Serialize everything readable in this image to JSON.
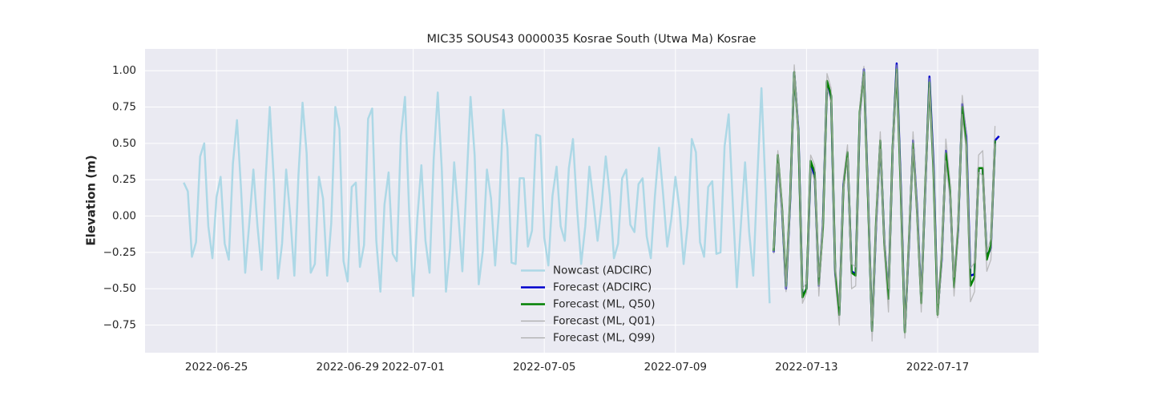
{
  "chart_data": {
    "type": "line",
    "title": "MIC35 SOUS43 0000035 Kosrae South (Utwa Ma) Kosrae",
    "y_label": "Elevation (m)",
    "xlim": [
      19165.82,
      19193.08
    ],
    "xticks": [
      {
        "value": 19168,
        "label": "2022-06-25"
      },
      {
        "value": 19172,
        "label": "2022-06-29"
      },
      {
        "value": 19174,
        "label": "2022-07-01"
      },
      {
        "value": 19178,
        "label": "2022-07-05"
      },
      {
        "value": 19182,
        "label": "2022-07-09"
      },
      {
        "value": 19186,
        "label": "2022-07-13"
      },
      {
        "value": 19190,
        "label": "2022-07-17"
      }
    ],
    "ylim": [
      -0.94,
      1.15
    ],
    "yticks": [
      {
        "value": -0.75,
        "label": "−0.75"
      },
      {
        "value": -0.5,
        "label": "−0.50"
      },
      {
        "value": -0.25,
        "label": "−0.25"
      },
      {
        "value": 0,
        "label": "0.00"
      },
      0.25,
      {
        "value": 0.5,
        "label": "0.50"
      },
      0.75,
      {
        "value": 1,
        "label": "1.00"
      }
    ],
    "grid": true,
    "legend": "lower center",
    "series": [
      {
        "name": "Nowcast (ADCIRC)",
        "color": "#add8e6",
        "width": 2.5,
        "x": [
          19167,
          19167.125,
          19167.25,
          19167.375,
          19167.5,
          19167.625,
          19167.75,
          19167.875,
          19168,
          19168.125,
          19168.25,
          19168.375,
          19168.5,
          19168.625,
          19168.75,
          19168.875,
          19169,
          19169.125,
          19169.25,
          19169.375,
          19169.5,
          19169.625,
          19169.75,
          19169.875,
          19170,
          19170.125,
          19170.25,
          19170.375,
          19170.5,
          19170.625,
          19170.75,
          19170.875,
          19171,
          19171.125,
          19171.25,
          19171.375,
          19171.5,
          19171.625,
          19171.75,
          19171.875,
          19172,
          19172.125,
          19172.25,
          19172.375,
          19172.5,
          19172.625,
          19172.75,
          19172.875,
          19173,
          19173.125,
          19173.25,
          19173.375,
          19173.5,
          19173.625,
          19173.75,
          19173.875,
          19174,
          19174.125,
          19174.25,
          19174.375,
          19174.5,
          19174.625,
          19174.75,
          19174.875,
          19175,
          19175.125,
          19175.25,
          19175.375,
          19175.5,
          19175.625,
          19175.75,
          19175.875,
          19176,
          19176.125,
          19176.25,
          19176.375,
          19176.5,
          19176.625,
          19176.75,
          19176.875,
          19177,
          19177.125,
          19177.25,
          19177.375,
          19177.5,
          19177.625,
          19177.75,
          19177.875,
          19178,
          19178.125,
          19178.25,
          19178.375,
          19178.5,
          19178.625,
          19178.75,
          19178.875,
          19179,
          19179.125,
          19179.25,
          19179.375,
          19179.5,
          19179.625,
          19179.75,
          19179.875,
          19180,
          19180.125,
          19180.25,
          19180.375,
          19180.5,
          19180.625,
          19180.75,
          19180.875,
          19181,
          19181.125,
          19181.25,
          19181.375,
          19181.5,
          19181.625,
          19181.75,
          19181.875,
          19182,
          19182.125,
          19182.25,
          19182.375,
          19182.5,
          19182.625,
          19182.75,
          19182.875,
          19183,
          19183.125,
          19183.25,
          19183.375,
          19183.5,
          19183.625,
          19183.75,
          19183.875,
          19184,
          19184.125,
          19184.25,
          19184.375,
          19184.5,
          19184.625,
          19184.75,
          19184.875
        ],
        "values": [
          0.23,
          0.17,
          -0.28,
          -0.18,
          0.41,
          0.5,
          -0.07,
          -0.29,
          0.13,
          0.27,
          -0.19,
          -0.3,
          0.36,
          0.66,
          0.18,
          -0.39,
          -0.05,
          0.32,
          -0.07,
          -0.37,
          0.26,
          0.75,
          0.24,
          -0.43,
          -0.19,
          0.32,
          0.0,
          -0.41,
          0.28,
          0.78,
          0.43,
          -0.39,
          -0.33,
          0.27,
          0.12,
          -0.41,
          -0.05,
          0.75,
          0.6,
          -0.31,
          -0.45,
          0.2,
          0.23,
          -0.35,
          -0.2,
          0.67,
          0.74,
          -0.17,
          -0.52,
          0.08,
          0.3,
          -0.26,
          -0.31,
          0.55,
          0.82,
          0.04,
          -0.55,
          -0.02,
          0.35,
          -0.17,
          -0.39,
          0.39,
          0.85,
          0.31,
          -0.52,
          -0.22,
          0.37,
          0.02,
          -0.38,
          0.21,
          0.82,
          0.42,
          -0.47,
          -0.24,
          0.32,
          0.12,
          -0.34,
          0.06,
          0.73,
          0.47,
          -0.32,
          -0.33,
          0.26,
          0.26,
          -0.21,
          -0.1,
          0.56,
          0.55,
          -0.15,
          -0.34,
          0.14,
          0.34,
          -0.07,
          -0.17,
          0.33,
          0.53,
          0.05,
          -0.33,
          -0.07,
          0.34,
          0.1,
          -0.17,
          0.08,
          0.41,
          0.14,
          -0.29,
          -0.19,
          0.26,
          0.32,
          -0.06,
          -0.11,
          0.22,
          0.26,
          -0.14,
          -0.29,
          0.14,
          0.47,
          0.15,
          -0.21,
          -0.02,
          0.27,
          0.05,
          -0.33,
          -0.06,
          0.53,
          0.44,
          -0.18,
          -0.28,
          0.2,
          0.24,
          -0.26,
          -0.25,
          0.48,
          0.7,
          0.09,
          -0.49,
          -0.05,
          0.37,
          -0.11,
          -0.41,
          0.27,
          0.88,
          0.18,
          -0.6
        ]
      },
      {
        "name": "Forecast (ADCIRC)",
        "color": "#0000cc",
        "width": 2.5,
        "x": [
          19185,
          19185.125,
          19185.25,
          19185.375,
          19185.5,
          19185.625,
          19185.75,
          19185.875,
          19186,
          19186.125,
          19186.25,
          19186.375,
          19186.5,
          19186.625,
          19186.75,
          19186.875,
          19187,
          19187.125,
          19187.25,
          19187.375,
          19187.5,
          19187.625,
          19187.75,
          19187.875,
          19188,
          19188.125,
          19188.25,
          19188.375,
          19188.5,
          19188.625,
          19188.75,
          19188.875,
          19189,
          19189.125,
          19189.25,
          19189.375,
          19189.5,
          19189.625,
          19189.75,
          19189.875,
          19190,
          19190.125,
          19190.25,
          19190.375,
          19190.5,
          19190.625,
          19190.75,
          19190.875,
          19191,
          19191.125,
          19191.25,
          19191.375,
          19191.5,
          19191.625,
          19191.75,
          19191.875
        ],
        "values": [
          -0.25,
          0.4,
          0.05,
          -0.5,
          0.1,
          0.99,
          0.6,
          -0.55,
          -0.5,
          0.35,
          0.28,
          -0.48,
          -0.05,
          0.92,
          0.82,
          -0.4,
          -0.68,
          0.22,
          0.43,
          -0.38,
          -0.4,
          0.7,
          1.01,
          0.15,
          -0.79,
          -0.05,
          0.51,
          -0.18,
          -0.55,
          0.45,
          1.05,
          0.22,
          -0.79,
          -0.2,
          0.52,
          0.05,
          -0.58,
          0.2,
          0.96,
          0.35,
          -0.66,
          -0.3,
          0.45,
          0.18,
          -0.48,
          -0.1,
          0.77,
          0.55,
          -0.41,
          -0.4,
          0.33,
          0.33,
          -0.28,
          -0.22,
          0.52,
          0.55
        ]
      },
      {
        "name": "Forecast (ML, Q50)",
        "color": "#008000",
        "width": 2.5,
        "x": [
          19185,
          19185.125,
          19185.25,
          19185.375,
          19185.5,
          19185.625,
          19185.75,
          19185.875,
          19186,
          19186.125,
          19186.25,
          19186.375,
          19186.5,
          19186.625,
          19186.75,
          19186.875,
          19187,
          19187.125,
          19187.25,
          19187.375,
          19187.5,
          19187.625,
          19187.75,
          19187.875,
          19188,
          19188.125,
          19188.25,
          19188.375,
          19188.5,
          19188.625,
          19188.75,
          19188.875,
          19189,
          19189.125,
          19189.25,
          19189.375,
          19189.5,
          19189.625,
          19189.75,
          19189.875,
          19190,
          19190.125,
          19190.25,
          19190.375,
          19190.5,
          19190.625,
          19190.75,
          19190.875,
          19191,
          19191.125,
          19191.25,
          19191.375,
          19191.5,
          19191.625,
          19191.75
        ],
        "values": [
          -0.24,
          0.42,
          0.07,
          -0.48,
          0.12,
          0.99,
          0.58,
          -0.56,
          -0.5,
          0.38,
          0.3,
          -0.47,
          -0.08,
          0.93,
          0.83,
          -0.38,
          -0.68,
          0.2,
          0.44,
          -0.39,
          -0.41,
          0.72,
          0.99,
          0.13,
          -0.79,
          -0.02,
          0.52,
          -0.2,
          -0.57,
          0.46,
          1.01,
          0.18,
          -0.8,
          -0.17,
          0.5,
          0.02,
          -0.6,
          0.22,
          0.92,
          0.3,
          -0.68,
          -0.27,
          0.43,
          0.2,
          -0.49,
          -0.08,
          0.75,
          0.5,
          -0.48,
          -0.42,
          0.33,
          0.33,
          -0.3,
          -0.2,
          0.52
        ]
      },
      {
        "name": "Forecast (ML, Q01)",
        "color": "#aaaaaa",
        "width": 1.3,
        "x": [
          19185,
          19185.125,
          19185.25,
          19185.375,
          19185.5,
          19185.625,
          19185.75,
          19185.875,
          19186,
          19186.125,
          19186.25,
          19186.375,
          19186.5,
          19186.625,
          19186.75,
          19186.875,
          19187,
          19187.125,
          19187.25,
          19187.375,
          19187.5,
          19187.625,
          19187.75,
          19187.875,
          19188,
          19188.125,
          19188.25,
          19188.375,
          19188.5,
          19188.625,
          19188.75,
          19188.875,
          19189,
          19189.125,
          19189.25,
          19189.375,
          19189.5,
          19189.625,
          19189.75,
          19189.875,
          19190,
          19190.125,
          19190.25,
          19190.375,
          19190.5,
          19190.625,
          19190.75,
          19190.875,
          19191,
          19191.125,
          19191.25,
          19191.375,
          19191.5,
          19191.625,
          19191.75
        ],
        "values": [
          -0.26,
          0.36,
          0.02,
          -0.52,
          0.06,
          0.95,
          0.55,
          -0.6,
          -0.53,
          0.33,
          0.24,
          -0.55,
          -0.1,
          0.88,
          0.78,
          -0.45,
          -0.75,
          0.18,
          0.4,
          -0.5,
          -0.48,
          0.66,
          0.96,
          0.1,
          -0.86,
          -0.1,
          0.46,
          -0.25,
          -0.66,
          0.4,
          0.98,
          0.15,
          -0.84,
          -0.25,
          0.46,
          -0.02,
          -0.66,
          0.15,
          0.88,
          0.28,
          -0.7,
          -0.35,
          0.38,
          0.12,
          -0.55,
          -0.15,
          0.7,
          0.45,
          -0.59,
          -0.52,
          0.3,
          0.28,
          -0.38,
          -0.3,
          0.5
        ]
      },
      {
        "name": "Forecast (ML, Q99)",
        "color": "#aaaaaa",
        "width": 1.3,
        "x": [
          19185,
          19185.125,
          19185.25,
          19185.375,
          19185.5,
          19185.625,
          19185.75,
          19185.875,
          19186,
          19186.125,
          19186.25,
          19186.375,
          19186.5,
          19186.625,
          19186.75,
          19186.875,
          19187,
          19187.125,
          19187.25,
          19187.375,
          19187.5,
          19187.625,
          19187.75,
          19187.875,
          19188,
          19188.125,
          19188.25,
          19188.375,
          19188.5,
          19188.625,
          19188.75,
          19188.875,
          19189,
          19189.125,
          19189.25,
          19189.375,
          19189.5,
          19189.625,
          19189.75,
          19189.875,
          19190,
          19190.125,
          19190.25,
          19190.375,
          19190.5,
          19190.625,
          19190.75,
          19190.875,
          19191,
          19191.125,
          19191.25,
          19191.375,
          19191.5,
          19191.625,
          19191.75
        ],
        "values": [
          -0.22,
          0.45,
          0.1,
          -0.45,
          0.16,
          1.04,
          0.63,
          -0.5,
          -0.46,
          0.42,
          0.35,
          -0.42,
          -0.02,
          0.98,
          0.88,
          -0.33,
          -0.62,
          0.26,
          0.49,
          -0.33,
          -0.35,
          0.76,
          1.03,
          0.2,
          -0.72,
          0.02,
          0.58,
          -0.14,
          -0.5,
          0.5,
          1.04,
          0.25,
          -0.74,
          -0.12,
          0.58,
          0.08,
          -0.52,
          0.27,
          0.95,
          0.35,
          -0.6,
          -0.22,
          0.53,
          0.25,
          -0.42,
          -0.02,
          0.83,
          0.57,
          -0.36,
          -0.32,
          0.42,
          0.45,
          -0.25,
          -0.15,
          0.62
        ]
      }
    ]
  }
}
